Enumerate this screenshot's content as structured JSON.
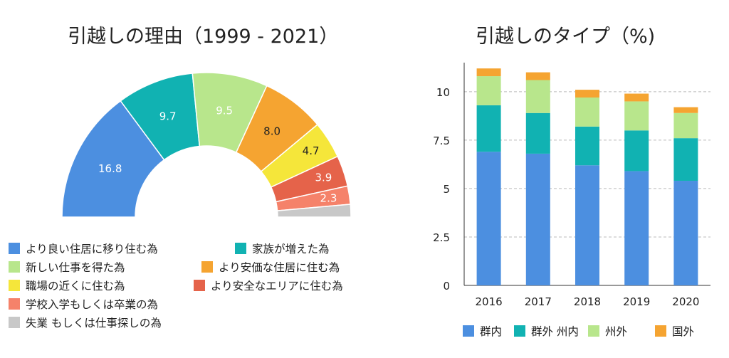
{
  "chart_data": [
    {
      "type": "pie",
      "variant": "half-donut",
      "title": "引越しの理由（1999 - 2021）",
      "slices": [
        {
          "label": "より良い住居に移り住む為",
          "value": 16.8,
          "color": "#4c8fe0"
        },
        {
          "label": "家族が増えた為",
          "value": 9.7,
          "color": "#11b2b2"
        },
        {
          "label": "新しい仕事を得た為",
          "value": 9.5,
          "color": "#b8e68c"
        },
        {
          "label": "より安価な住居に住む為",
          "value": 8.0,
          "color": "#f5a431"
        },
        {
          "label": "職場の近くに住む為",
          "value": 4.7,
          "color": "#f5e63a"
        },
        {
          "label": "より安全なエリアに住む為",
          "value": 3.9,
          "color": "#e5634a"
        },
        {
          "label": "学校入学もしくは卒業の為",
          "value": 2.3,
          "color": "#f5826a"
        },
        {
          "label": "失業 もしくは仕事探しの為",
          "value": 1.6,
          "color": "#c8c8c8"
        }
      ],
      "data_labels": [
        "16.8",
        "9.7",
        "9.5",
        "8.0",
        "4.7",
        "3.9",
        "2.3",
        ""
      ],
      "legend_position": "bottom"
    },
    {
      "type": "bar",
      "stacked": true,
      "title": "引越しのタイプ（%)",
      "categories": [
        "2016",
        "2017",
        "2018",
        "2019",
        "2020"
      ],
      "series": [
        {
          "name": "群内",
          "values": [
            6.9,
            6.8,
            6.2,
            5.9,
            5.4
          ],
          "color": "#4c8fe0"
        },
        {
          "name": "群外 州内",
          "values": [
            2.4,
            2.1,
            2.0,
            2.1,
            2.2
          ],
          "color": "#11b2b2"
        },
        {
          "name": "州外",
          "values": [
            1.5,
            1.7,
            1.5,
            1.5,
            1.3
          ],
          "color": "#b8e68c"
        },
        {
          "name": "国外",
          "values": [
            0.4,
            0.4,
            0.4,
            0.4,
            0.3
          ],
          "color": "#f5a431"
        }
      ],
      "y_ticks": [
        "0",
        "2.5",
        "5",
        "7.5",
        "10"
      ],
      "ylim": [
        0,
        11.5
      ],
      "grid": "horizontal dashed",
      "legend_position": "bottom"
    }
  ]
}
